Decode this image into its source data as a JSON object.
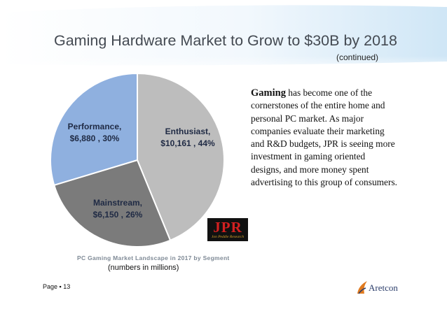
{
  "slide": {
    "title": "Gaming Hardware Market to Grow to $30B by 2018",
    "subtitle": "(continued)",
    "body_lead": "Gaming",
    "body_rest": " has become one of the cornerstones of the entire home and personal PC market. As major companies evaluate their marketing and R&D budgets, JPR is seeing more investment in gaming oriented designs, and more money spent advertising to this group of consumers.",
    "chart_caption": "PC Gaming Market Landscape in 2017 by Segment",
    "units_note": "(numbers in millions)",
    "page_label": "Page ▪ 13",
    "jpr_logo": {
      "letters": "JPR",
      "tagline": "Jon Peddie Research"
    },
    "company_logo": {
      "name": "Aretcon",
      "icon": "flame-swoosh-icon"
    }
  },
  "chart_data": {
    "type": "pie",
    "title": "",
    "slices": [
      {
        "label": "Enthusiast,",
        "value_text": "$10,161 , 44%",
        "value": 10161,
        "percent": 44,
        "color": "#bdbdbd"
      },
      {
        "label": "Mainstream,",
        "value_text": "$6,150 , 26%",
        "value": 6150,
        "percent": 26,
        "color": "#7b7b7b"
      },
      {
        "label": "Performance,",
        "value_text": "$6,880 , 30%",
        "value": 6880,
        "percent": 30,
        "color": "#8fb0df"
      }
    ],
    "start": "top, clockwise",
    "legend": "none"
  }
}
